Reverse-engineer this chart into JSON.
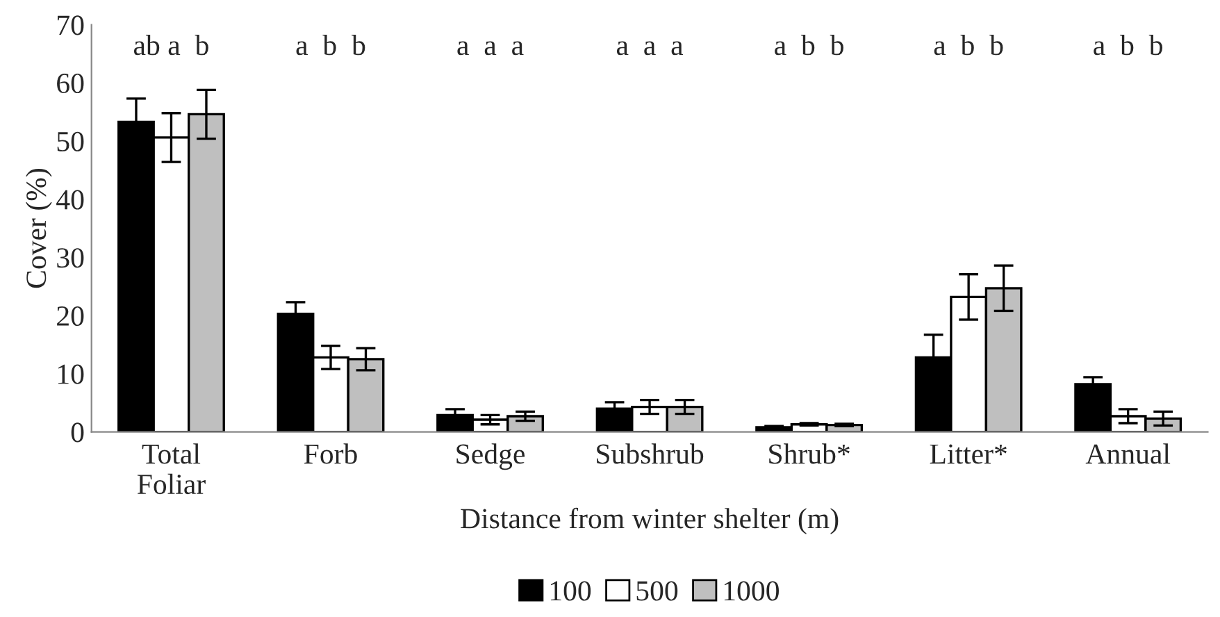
{
  "chart_data": {
    "type": "bar",
    "xlabel": "Distance from winter shelter (m)",
    "ylabel": "Cover (%)",
    "categories": [
      "Total\nFoliar",
      "Forb",
      "Sedge",
      "Subshrub",
      "Shrub*",
      "Litter*",
      "Annual"
    ],
    "series": [
      {
        "name": "100",
        "color": "#000000",
        "values": [
          53.3,
          20.3,
          2.9,
          4.0,
          0.8,
          12.8,
          8.2
        ],
        "errors": [
          4,
          2,
          1,
          1.1,
          0.2,
          3.9,
          1.2
        ]
      },
      {
        "name": "500",
        "color": "#ffffff",
        "values": [
          50.6,
          12.8,
          2.1,
          4.3,
          1.3,
          23.2,
          2.7
        ],
        "errors": [
          4.2,
          2,
          0.8,
          1.2,
          0.2,
          3.9,
          1.2
        ]
      },
      {
        "name": "1000",
        "color": "#bfbfbf",
        "values": [
          54.6,
          12.5,
          2.7,
          4.3,
          1.2,
          24.7,
          2.3
        ],
        "errors": [
          4.2,
          1.9,
          0.8,
          1.2,
          0.2,
          3.9,
          1.2
        ]
      }
    ],
    "ylim": [
      0,
      70
    ],
    "yticks": [
      0,
      10,
      20,
      30,
      40,
      50,
      60,
      70
    ],
    "grid": false,
    "legend": "bottom",
    "annotations": [
      "ab a  b",
      "a  b  b",
      "a  a  a",
      "a  a  a",
      "a  b  b",
      "a  b  b",
      "a  b  b"
    ]
  }
}
